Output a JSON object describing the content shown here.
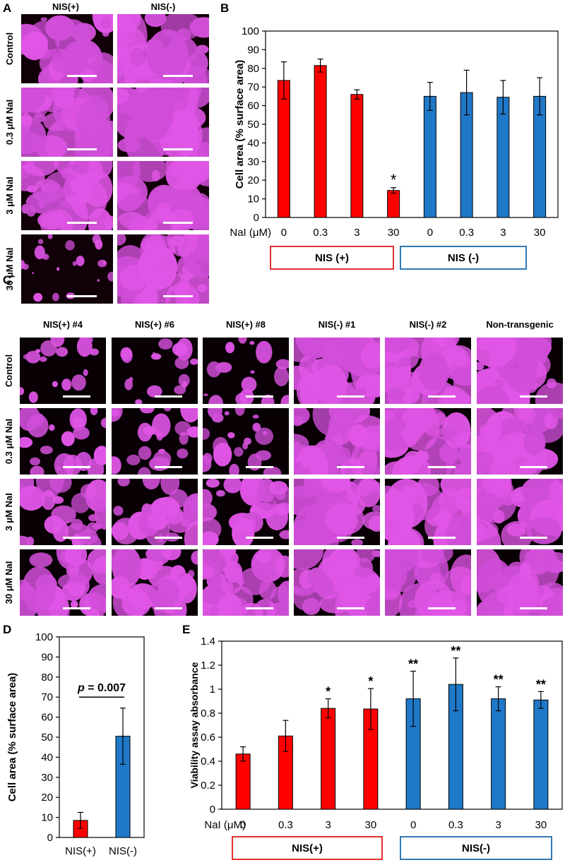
{
  "panel_labels": {
    "a": "A",
    "b": "B",
    "c": "C",
    "d": "D",
    "e": "E"
  },
  "panel_a": {
    "columns": [
      "NIS(+)",
      "NIS(-)"
    ],
    "rows": [
      "Control",
      "0.3 μM NaI",
      "3 μM NaI",
      "30 μM NaI"
    ]
  },
  "panel_c": {
    "columns": [
      "NIS(+) #4",
      "NIS(+) #6",
      "NIS(+) #8",
      "NIS(-) #1",
      "NIS(-) #2",
      "Non-transgenic"
    ],
    "rows": [
      "Control",
      "0.3 μM NaI",
      "3 μM NaI",
      "30 μM NaI"
    ]
  },
  "colors": {
    "red": "#ff0000",
    "blue": "#1f78c8",
    "legend_red": "#e03030",
    "legend_blue": "#2e7ab8",
    "magenta": "#e055e6"
  },
  "chart_data": [
    {
      "panel": "B",
      "type": "bar",
      "ylabel": "Cell area (% surface area)",
      "xlabel_prefix": "NaI (μM)",
      "categories": [
        "0",
        "0.3",
        "3",
        "30",
        "0",
        "0.3",
        "3",
        "30"
      ],
      "values": [
        73.5,
        81.5,
        66,
        14.5,
        65,
        67,
        64.5,
        65
      ],
      "errors": [
        10,
        3.5,
        2.5,
        1.5,
        7.5,
        12,
        9,
        10
      ],
      "bar_colors": [
        "red",
        "red",
        "red",
        "red",
        "blue",
        "blue",
        "blue",
        "blue"
      ],
      "annotations": [
        "",
        "",
        "",
        "*",
        "",
        "",
        "",
        ""
      ],
      "ylim": [
        0,
        100
      ],
      "yticks": [
        "0",
        "10",
        "20",
        "30",
        "40",
        "50",
        "60",
        "70",
        "80",
        "90",
        "100"
      ],
      "groups": [
        {
          "name": "NIS (+)",
          "color": "red"
        },
        {
          "name": "NIS (-)",
          "color": "blue"
        }
      ]
    },
    {
      "panel": "D",
      "type": "bar",
      "ylabel": "Cell area (% surface area)",
      "categories": [
        "NIS(+)",
        "NIS(-)"
      ],
      "values": [
        8.5,
        50.5
      ],
      "errors": [
        4,
        14
      ],
      "bar_colors": [
        "red",
        "blue"
      ],
      "ylim": [
        0,
        100
      ],
      "yticks": [
        "0",
        "10",
        "20",
        "30",
        "40",
        "50",
        "60",
        "70",
        "80",
        "90",
        "100"
      ],
      "significance": {
        "p_label": "p",
        "p_value": " = 0.007"
      }
    },
    {
      "panel": "E",
      "type": "bar",
      "ylabel": "Viability assay absorbance",
      "xlabel_prefix": "NaI (μM)",
      "categories": [
        "0",
        "0.3",
        "3",
        "30",
        "0",
        "0.3",
        "3",
        "30"
      ],
      "values": [
        0.46,
        0.61,
        0.84,
        0.835,
        0.92,
        1.04,
        0.92,
        0.91
      ],
      "errors": [
        0.06,
        0.13,
        0.08,
        0.17,
        0.23,
        0.22,
        0.1,
        0.07
      ],
      "bar_colors": [
        "red",
        "red",
        "red",
        "red",
        "blue",
        "blue",
        "blue",
        "blue"
      ],
      "annotations": [
        "",
        "",
        "*",
        "*",
        "**",
        "**",
        "**",
        "**"
      ],
      "ylim": [
        0,
        1.4
      ],
      "yticks": [
        "0",
        "0.2",
        "0.4",
        "0.6",
        "0.8",
        "1",
        "1.2",
        "1.4"
      ],
      "groups": [
        {
          "name": "NIS(+)",
          "color": "red"
        },
        {
          "name": "NIS(-)",
          "color": "blue"
        }
      ]
    }
  ]
}
